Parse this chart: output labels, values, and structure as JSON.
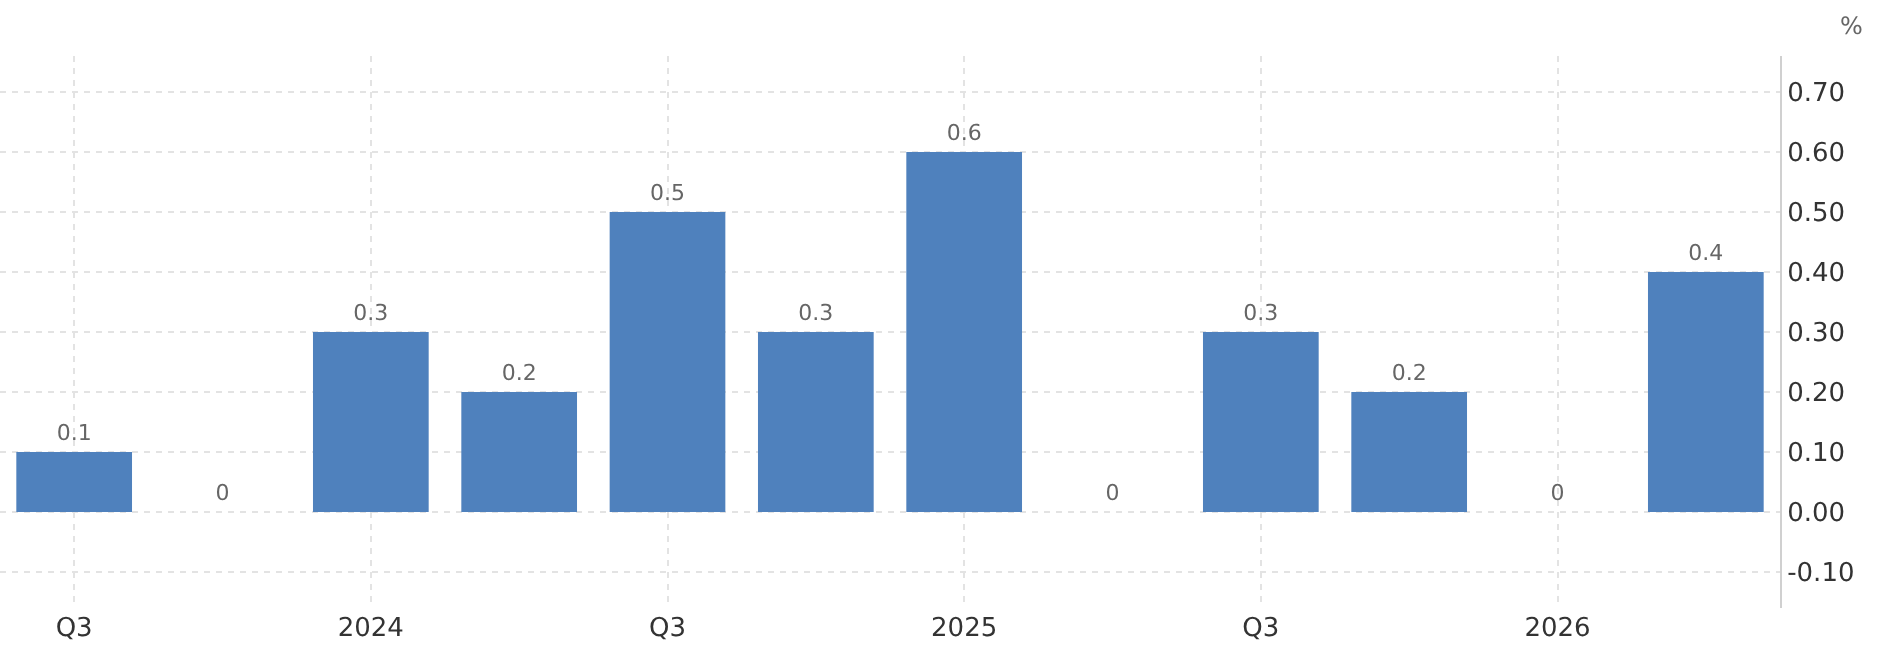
{
  "chart_data": {
    "type": "bar",
    "ylabel": "%",
    "categories": [
      "Q3",
      null,
      "2024",
      null,
      "Q3",
      null,
      "2025",
      null,
      "Q3",
      null,
      "2026",
      null
    ],
    "values": [
      0.1,
      0,
      0.3,
      0.2,
      0.5,
      0.3,
      0.6,
      0,
      0.3,
      0.2,
      0,
      0.4
    ],
    "color": "#4f81bd",
    "data_labels": true,
    "grid": true,
    "ylim": [
      -0.16,
      0.76
    ],
    "yticks": [
      {
        "value": -0.1,
        "label": "-0.10"
      },
      {
        "value": 0,
        "label": "0.00"
      },
      {
        "value": 0.1,
        "label": "0.10"
      },
      {
        "value": 0.2,
        "label": "0.20"
      },
      {
        "value": 0.3,
        "label": "0.30"
      },
      {
        "value": 0.4,
        "label": "0.40"
      },
      {
        "value": 0.5,
        "label": "0.50"
      },
      {
        "value": 0.6,
        "label": "0.60"
      },
      {
        "value": 0.7,
        "label": "0.70"
      }
    ]
  }
}
